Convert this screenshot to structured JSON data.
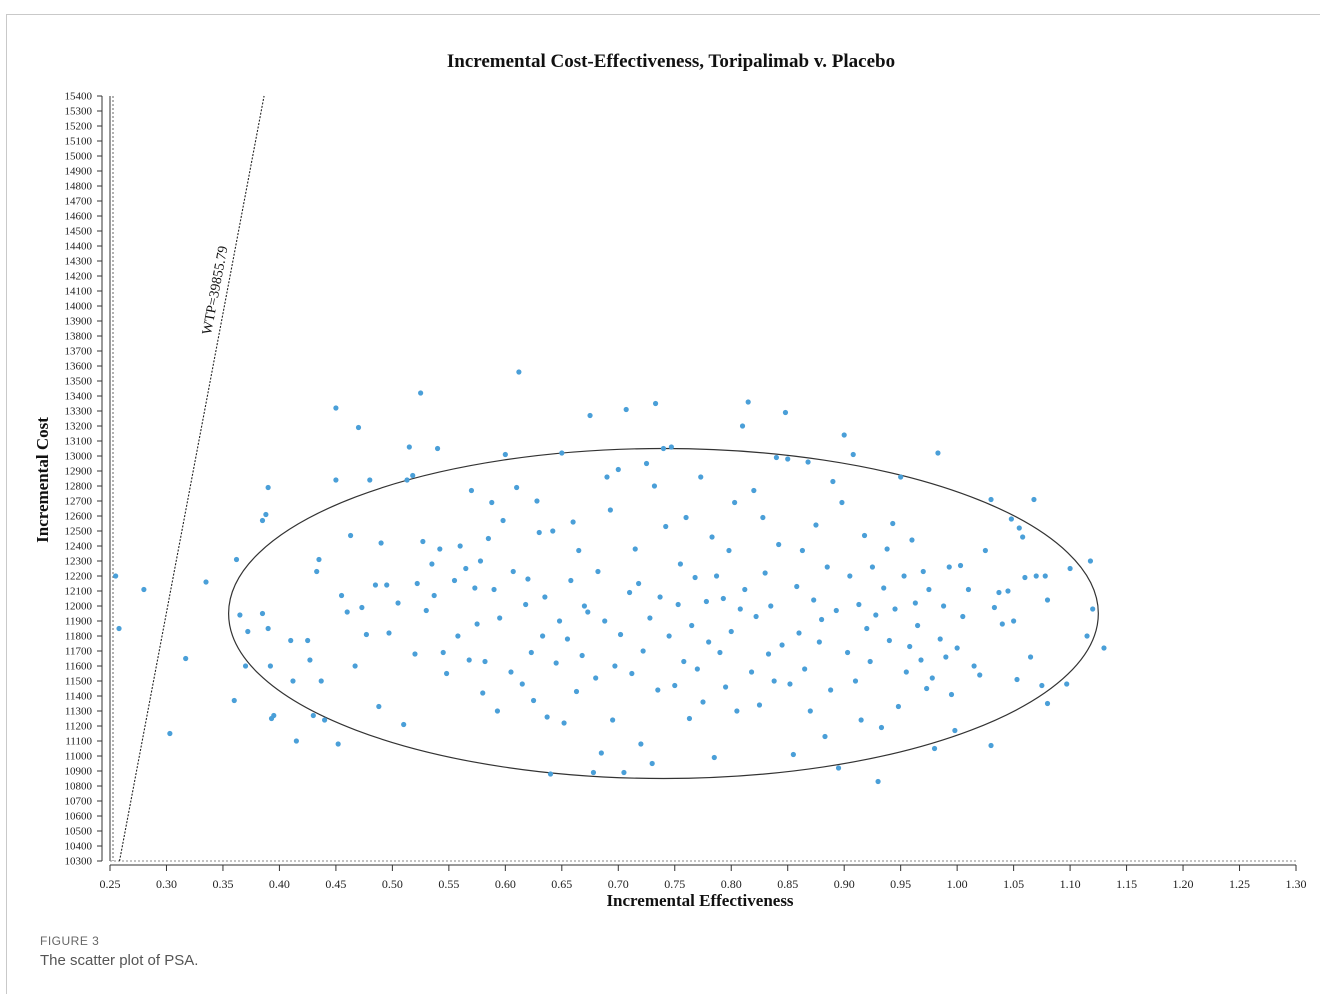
{
  "figure": {
    "label": "FIGURE 3",
    "caption": "The scatter plot of PSA."
  },
  "chart_data": {
    "type": "scatter",
    "title": "Incremental Cost-Effectiveness, Toripalimab v. Placebo",
    "xlabel": "Incremental Effectiveness",
    "ylabel": "Incremental Cost",
    "xlim": [
      0.25,
      1.3
    ],
    "ylim": [
      10300,
      15400
    ],
    "x_ticks": [
      "0.25",
      "0.30",
      "0.35",
      "0.40",
      "0.45",
      "0.50",
      "0.55",
      "0.60",
      "0.65",
      "0.70",
      "0.75",
      "0.80",
      "0.85",
      "0.90",
      "0.95",
      "1.00",
      "1.05",
      "1.10",
      "1.15",
      "1.20",
      "1.25",
      "1.30"
    ],
    "y_ticks": [
      "10300",
      "10400",
      "10500",
      "10600",
      "10700",
      "10800",
      "10900",
      "11000",
      "11100",
      "11200",
      "11300",
      "11400",
      "11500",
      "11600",
      "11700",
      "11800",
      "11900",
      "12000",
      "12100",
      "12200",
      "12300",
      "12400",
      "12500",
      "12600",
      "12700",
      "12800",
      "12900",
      "13000",
      "13100",
      "13200",
      "13300",
      "13400",
      "13500",
      "13600",
      "13700",
      "13800",
      "13900",
      "14000",
      "14100",
      "14200",
      "14300",
      "14400",
      "14500",
      "14600",
      "14700",
      "14800",
      "14900",
      "15000",
      "15100",
      "15200",
      "15300",
      "15400"
    ],
    "wtp": {
      "label": "WTP=39855.79",
      "slope": 39855.79
    },
    "ellipse": {
      "center": [
        0.74,
        11950
      ],
      "semi_x": 0.385,
      "semi_y": 1100
    },
    "point_color": "#4a9fd8",
    "series": [
      {
        "points": [
          [
            0.255,
            12200
          ],
          [
            0.258,
            11850
          ],
          [
            0.28,
            12110
          ],
          [
            0.303,
            11150
          ],
          [
            0.317,
            11650
          ],
          [
            0.335,
            12160
          ],
          [
            0.36,
            11370
          ],
          [
            0.362,
            12310
          ],
          [
            0.365,
            11940
          ],
          [
            0.37,
            11600
          ],
          [
            0.372,
            11830
          ],
          [
            0.385,
            12570
          ],
          [
            0.388,
            12610
          ],
          [
            0.39,
            12790
          ],
          [
            0.385,
            11950
          ],
          [
            0.39,
            11850
          ],
          [
            0.392,
            11600
          ],
          [
            0.395,
            11270
          ],
          [
            0.393,
            11250
          ],
          [
            0.41,
            11770
          ],
          [
            0.412,
            11500
          ],
          [
            0.415,
            11100
          ],
          [
            0.425,
            11770
          ],
          [
            0.427,
            11640
          ],
          [
            0.43,
            11270
          ],
          [
            0.433,
            12230
          ],
          [
            0.435,
            12310
          ],
          [
            0.437,
            11500
          ],
          [
            0.44,
            11240
          ],
          [
            0.45,
            12840
          ],
          [
            0.45,
            13320
          ],
          [
            0.452,
            11080
          ],
          [
            0.455,
            12070
          ],
          [
            0.46,
            11960
          ],
          [
            0.463,
            12470
          ],
          [
            0.467,
            11600
          ],
          [
            0.47,
            13190
          ],
          [
            0.473,
            11990
          ],
          [
            0.477,
            11810
          ],
          [
            0.48,
            12840
          ],
          [
            0.485,
            12140
          ],
          [
            0.488,
            11330
          ],
          [
            0.49,
            12420
          ],
          [
            0.495,
            12140
          ],
          [
            0.497,
            11820
          ],
          [
            0.505,
            12020
          ],
          [
            0.51,
            11210
          ],
          [
            0.513,
            12840
          ],
          [
            0.515,
            13060
          ],
          [
            0.518,
            12870
          ],
          [
            0.52,
            11680
          ],
          [
            0.522,
            12150
          ],
          [
            0.525,
            13420
          ],
          [
            0.527,
            12430
          ],
          [
            0.53,
            11970
          ],
          [
            0.535,
            12280
          ],
          [
            0.537,
            12070
          ],
          [
            0.54,
            13050
          ],
          [
            0.542,
            12380
          ],
          [
            0.545,
            11690
          ],
          [
            0.548,
            11550
          ],
          [
            0.555,
            12170
          ],
          [
            0.558,
            11800
          ],
          [
            0.56,
            12400
          ],
          [
            0.565,
            12250
          ],
          [
            0.568,
            11640
          ],
          [
            0.57,
            12770
          ],
          [
            0.573,
            12120
          ],
          [
            0.575,
            11880
          ],
          [
            0.578,
            12300
          ],
          [
            0.58,
            11420
          ],
          [
            0.582,
            11630
          ],
          [
            0.585,
            12450
          ],
          [
            0.588,
            12690
          ],
          [
            0.59,
            12110
          ],
          [
            0.593,
            11300
          ],
          [
            0.595,
            11920
          ],
          [
            0.598,
            12570
          ],
          [
            0.6,
            13010
          ],
          [
            0.605,
            11560
          ],
          [
            0.607,
            12230
          ],
          [
            0.61,
            12790
          ],
          [
            0.612,
            13560
          ],
          [
            0.615,
            11480
          ],
          [
            0.618,
            12010
          ],
          [
            0.62,
            12180
          ],
          [
            0.623,
            11690
          ],
          [
            0.625,
            11370
          ],
          [
            0.628,
            12700
          ],
          [
            0.63,
            12490
          ],
          [
            0.633,
            11800
          ],
          [
            0.635,
            12060
          ],
          [
            0.637,
            11260
          ],
          [
            0.64,
            10880
          ],
          [
            0.642,
            12500
          ],
          [
            0.645,
            11620
          ],
          [
            0.648,
            11900
          ],
          [
            0.65,
            13020
          ],
          [
            0.652,
            11220
          ],
          [
            0.655,
            11780
          ],
          [
            0.658,
            12170
          ],
          [
            0.66,
            12560
          ],
          [
            0.663,
            11430
          ],
          [
            0.665,
            12370
          ],
          [
            0.668,
            11670
          ],
          [
            0.67,
            12000
          ],
          [
            0.673,
            11960
          ],
          [
            0.675,
            13270
          ],
          [
            0.678,
            10890
          ],
          [
            0.68,
            11520
          ],
          [
            0.682,
            12230
          ],
          [
            0.685,
            11020
          ],
          [
            0.688,
            11900
          ],
          [
            0.69,
            12860
          ],
          [
            0.693,
            12640
          ],
          [
            0.695,
            11240
          ],
          [
            0.697,
            11600
          ],
          [
            0.7,
            12910
          ],
          [
            0.702,
            11810
          ],
          [
            0.705,
            10890
          ],
          [
            0.707,
            13310
          ],
          [
            0.71,
            12090
          ],
          [
            0.712,
            11550
          ],
          [
            0.715,
            12380
          ],
          [
            0.718,
            12150
          ],
          [
            0.72,
            11080
          ],
          [
            0.722,
            11700
          ],
          [
            0.725,
            12950
          ],
          [
            0.728,
            11920
          ],
          [
            0.73,
            10950
          ],
          [
            0.732,
            12800
          ],
          [
            0.733,
            13350
          ],
          [
            0.735,
            11440
          ],
          [
            0.737,
            12060
          ],
          [
            0.74,
            13050
          ],
          [
            0.742,
            12530
          ],
          [
            0.745,
            11800
          ],
          [
            0.747,
            13060
          ],
          [
            0.75,
            11470
          ],
          [
            0.753,
            12010
          ],
          [
            0.755,
            12280
          ],
          [
            0.758,
            11630
          ],
          [
            0.76,
            12590
          ],
          [
            0.763,
            11250
          ],
          [
            0.765,
            11870
          ],
          [
            0.768,
            12190
          ],
          [
            0.77,
            11580
          ],
          [
            0.773,
            12860
          ],
          [
            0.775,
            11360
          ],
          [
            0.778,
            12030
          ],
          [
            0.78,
            11760
          ],
          [
            0.783,
            12460
          ],
          [
            0.785,
            10990
          ],
          [
            0.787,
            12200
          ],
          [
            0.79,
            11690
          ],
          [
            0.793,
            12050
          ],
          [
            0.795,
            11460
          ],
          [
            0.798,
            12370
          ],
          [
            0.8,
            11830
          ],
          [
            0.803,
            12690
          ],
          [
            0.805,
            11300
          ],
          [
            0.808,
            11980
          ],
          [
            0.81,
            13200
          ],
          [
            0.812,
            12110
          ],
          [
            0.815,
            13360
          ],
          [
            0.818,
            11560
          ],
          [
            0.82,
            12770
          ],
          [
            0.822,
            11930
          ],
          [
            0.825,
            11340
          ],
          [
            0.828,
            12590
          ],
          [
            0.83,
            12220
          ],
          [
            0.833,
            11680
          ],
          [
            0.835,
            12000
          ],
          [
            0.838,
            11500
          ],
          [
            0.84,
            12990
          ],
          [
            0.842,
            12410
          ],
          [
            0.845,
            11740
          ],
          [
            0.848,
            13290
          ],
          [
            0.85,
            12980
          ],
          [
            0.852,
            11480
          ],
          [
            0.855,
            11010
          ],
          [
            0.858,
            12130
          ],
          [
            0.86,
            11820
          ],
          [
            0.863,
            12370
          ],
          [
            0.865,
            11580
          ],
          [
            0.868,
            12960
          ],
          [
            0.87,
            11300
          ],
          [
            0.873,
            12040
          ],
          [
            0.875,
            12540
          ],
          [
            0.878,
            11760
          ],
          [
            0.88,
            11910
          ],
          [
            0.883,
            11130
          ],
          [
            0.885,
            12260
          ],
          [
            0.888,
            11440
          ],
          [
            0.89,
            12830
          ],
          [
            0.893,
            11970
          ],
          [
            0.895,
            10920
          ],
          [
            0.898,
            12690
          ],
          [
            0.9,
            13140
          ],
          [
            0.903,
            11690
          ],
          [
            0.905,
            12200
          ],
          [
            0.908,
            13010
          ],
          [
            0.91,
            11500
          ],
          [
            0.913,
            12010
          ],
          [
            0.915,
            11240
          ],
          [
            0.918,
            12470
          ],
          [
            0.92,
            11850
          ],
          [
            0.923,
            11630
          ],
          [
            0.925,
            12260
          ],
          [
            0.928,
            11940
          ],
          [
            0.93,
            10830
          ],
          [
            0.933,
            11190
          ],
          [
            0.935,
            12120
          ],
          [
            0.938,
            12380
          ],
          [
            0.94,
            11770
          ],
          [
            0.943,
            12550
          ],
          [
            0.945,
            11980
          ],
          [
            0.948,
            11330
          ],
          [
            0.95,
            12860
          ],
          [
            0.953,
            12200
          ],
          [
            0.955,
            11560
          ],
          [
            0.958,
            11730
          ],
          [
            0.96,
            12440
          ],
          [
            0.963,
            12020
          ],
          [
            0.965,
            11870
          ],
          [
            0.968,
            11640
          ],
          [
            0.97,
            12230
          ],
          [
            0.973,
            11450
          ],
          [
            0.975,
            12110
          ],
          [
            0.978,
            11520
          ],
          [
            0.98,
            11050
          ],
          [
            0.983,
            13020
          ],
          [
            0.985,
            11780
          ],
          [
            0.988,
            12000
          ],
          [
            0.99,
            11660
          ],
          [
            0.993,
            12260
          ],
          [
            0.995,
            11410
          ],
          [
            0.998,
            11170
          ],
          [
            1.0,
            11720
          ],
          [
            1.003,
            12270
          ],
          [
            1.005,
            11930
          ],
          [
            1.01,
            12110
          ],
          [
            1.015,
            11600
          ],
          [
            1.02,
            11540
          ],
          [
            1.025,
            12370
          ],
          [
            1.03,
            11070
          ],
          [
            1.03,
            12710
          ],
          [
            1.033,
            11990
          ],
          [
            1.037,
            12090
          ],
          [
            1.04,
            11880
          ],
          [
            1.045,
            12100
          ],
          [
            1.048,
            12580
          ],
          [
            1.05,
            11900
          ],
          [
            1.053,
            11510
          ],
          [
            1.055,
            12520
          ],
          [
            1.058,
            12460
          ],
          [
            1.06,
            12190
          ],
          [
            1.065,
            11660
          ],
          [
            1.068,
            12710
          ],
          [
            1.07,
            12200
          ],
          [
            1.075,
            11470
          ],
          [
            1.078,
            12200
          ],
          [
            1.08,
            11350
          ],
          [
            1.08,
            12040
          ],
          [
            1.097,
            11480
          ],
          [
            1.1,
            12250
          ],
          [
            1.115,
            11800
          ],
          [
            1.118,
            12300
          ],
          [
            1.12,
            11980
          ],
          [
            1.13,
            11720
          ]
        ]
      }
    ]
  }
}
